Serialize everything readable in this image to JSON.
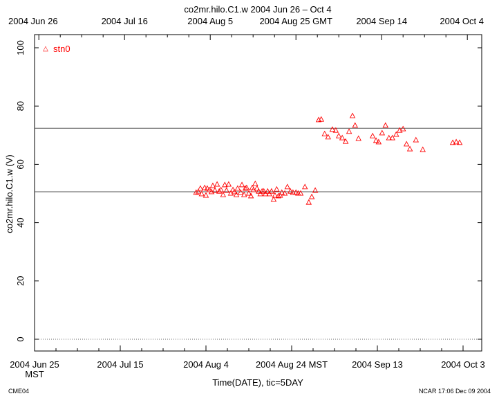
{
  "chart_data": {
    "type": "scatter",
    "title": "co2mr.hilo.C1.w 2004 Jun 26 – Oct 4",
    "xlabel": "Time(DATE), tic=5DAY",
    "ylabel": "co2mr.hilo.C1.w (V)",
    "ylim": [
      -4,
      105
    ],
    "xlim_days": [
      0,
      104.4
    ],
    "yticks": [
      "0",
      "20",
      "40",
      "60",
      "80",
      "100"
    ],
    "ytick_values": [
      0,
      20,
      40,
      60,
      80,
      100
    ],
    "xticks_bottom": [
      "2004 Jun 25",
      "2004 Jul 15",
      "2004 Aug  4",
      "2004 Aug 24 MST",
      "2004 Sep 13",
      "2004 Oct  3"
    ],
    "xticks_bottom_sub": "MST",
    "xticks_top": [
      "2004 Jun 26",
      "2004 Jul 16",
      "2004 Aug  5",
      "2004 Aug 25 GMT",
      "2004 Sep 14",
      "2004 Oct  4"
    ],
    "xtick_days": [
      0,
      20,
      40,
      60,
      80,
      100
    ],
    "x_unit": "days since 2004 Jun 25 MST",
    "legend": {
      "label": "stn0",
      "placement": "top-left"
    },
    "color": "#ff0000",
    "hlines": [
      50.6,
      72.4
    ],
    "dotted_line": 0,
    "series": [
      {
        "name": "stn0",
        "points": [
          [
            37.7,
            50.4
          ],
          [
            38.2,
            50.6
          ],
          [
            38.7,
            51.8
          ],
          [
            39.0,
            49.9
          ],
          [
            39.7,
            52.0
          ],
          [
            40.0,
            49.4
          ],
          [
            40.3,
            51.8
          ],
          [
            40.8,
            51.3
          ],
          [
            41.3,
            50.6
          ],
          [
            41.6,
            52.7
          ],
          [
            42.1,
            51.1
          ],
          [
            42.6,
            53.2
          ],
          [
            43.1,
            50.8
          ],
          [
            43.5,
            51.3
          ],
          [
            44.0,
            49.6
          ],
          [
            44.4,
            53.0
          ],
          [
            44.8,
            51.1
          ],
          [
            45.3,
            53.2
          ],
          [
            45.8,
            50.1
          ],
          [
            46.3,
            51.3
          ],
          [
            46.6,
            50.6
          ],
          [
            47.1,
            49.6
          ],
          [
            47.4,
            51.8
          ],
          [
            48.1,
            50.4
          ],
          [
            48.4,
            53.0
          ],
          [
            48.9,
            49.6
          ],
          [
            49.2,
            51.8
          ],
          [
            49.5,
            52.0
          ],
          [
            50.0,
            50.1
          ],
          [
            50.5,
            49.2
          ],
          [
            50.8,
            52.0
          ],
          [
            51.1,
            51.3
          ],
          [
            51.5,
            53.4
          ],
          [
            51.9,
            51.8
          ],
          [
            52.3,
            50.8
          ],
          [
            52.7,
            49.9
          ],
          [
            53.1,
            50.8
          ],
          [
            53.5,
            50.8
          ],
          [
            53.9,
            49.9
          ],
          [
            54.4,
            50.8
          ],
          [
            54.8,
            49.9
          ],
          [
            55.3,
            50.8
          ],
          [
            55.8,
            48.0
          ],
          [
            56.1,
            49.4
          ],
          [
            56.5,
            51.5
          ],
          [
            56.9,
            49.2
          ],
          [
            57.3,
            49.4
          ],
          [
            57.7,
            50.4
          ],
          [
            58.4,
            50.1
          ],
          [
            59.0,
            52.3
          ],
          [
            59.7,
            50.8
          ],
          [
            60.3,
            50.4
          ],
          [
            61.0,
            50.4
          ],
          [
            61.5,
            50.1
          ],
          [
            62.1,
            50.1
          ],
          [
            63.1,
            52.3
          ],
          [
            64.0,
            47.0
          ],
          [
            64.7,
            48.9
          ],
          [
            65.5,
            51.1
          ],
          [
            66.3,
            75.3
          ],
          [
            66.9,
            75.5
          ],
          [
            67.7,
            70.5
          ],
          [
            68.5,
            69.4
          ],
          [
            69.5,
            72.0
          ],
          [
            70.3,
            71.7
          ],
          [
            71.0,
            69.8
          ],
          [
            71.8,
            69.1
          ],
          [
            72.6,
            67.9
          ],
          [
            73.4,
            71.3
          ],
          [
            74.2,
            76.7
          ],
          [
            74.8,
            73.4
          ],
          [
            75.6,
            68.9
          ],
          [
            78.9,
            69.8
          ],
          [
            79.7,
            68.2
          ],
          [
            80.3,
            67.7
          ],
          [
            81.1,
            70.8
          ],
          [
            81.9,
            73.4
          ],
          [
            82.7,
            69.1
          ],
          [
            83.5,
            69.1
          ],
          [
            84.4,
            70.3
          ],
          [
            85.2,
            71.7
          ],
          [
            86.0,
            72.2
          ],
          [
            86.8,
            67.0
          ],
          [
            87.6,
            65.3
          ],
          [
            89.0,
            68.4
          ],
          [
            90.6,
            65.1
          ],
          [
            97.6,
            67.5
          ],
          [
            98.4,
            67.7
          ],
          [
            99.2,
            67.5
          ]
        ]
      }
    ]
  },
  "footer": {
    "left": "CME04",
    "right": "NCAR 17:06 Dec 09 2004"
  }
}
